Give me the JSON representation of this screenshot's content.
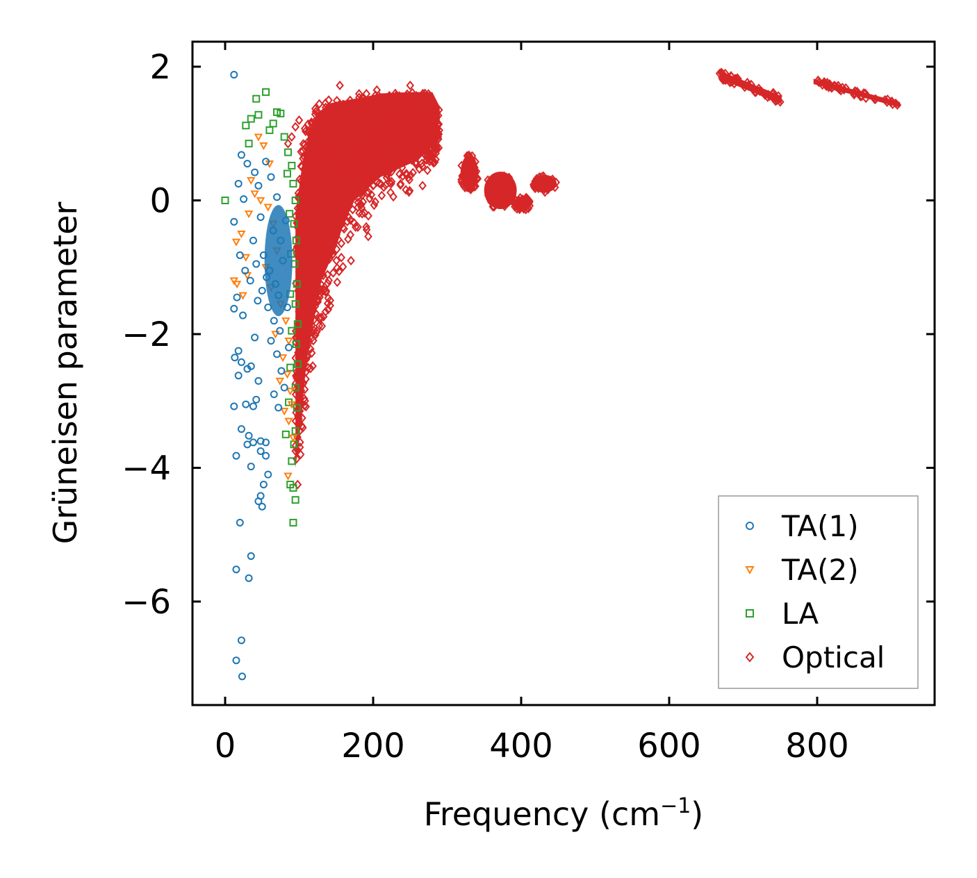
{
  "chart_data": {
    "type": "scatter",
    "title": "",
    "xlabel": "Frequency (cm",
    "xlabel_sup": "−1",
    "xlabel_close": ")",
    "ylabel": "Grüneisen parameter",
    "xlim": [
      -22,
      960
    ],
    "ylim": [
      -7.5,
      2.4
    ],
    "xticks": [
      0,
      200,
      400,
      600,
      800
    ],
    "xtick_labels": [
      "0",
      "200",
      "400",
      "600",
      "800"
    ],
    "yticks": [
      2,
      0,
      -2,
      -4,
      -6
    ],
    "ytick_labels": [
      "2",
      "0",
      "−2",
      "−4",
      "−6"
    ],
    "grid": false,
    "legend_position": "bottom-right",
    "series": [
      {
        "name": "TA(1)",
        "marker": "circle",
        "color": "#1f77b4",
        "points": [
          [
            12,
            1.88
          ],
          [
            22,
            0.68
          ],
          [
            30,
            0.55
          ],
          [
            18,
            0.25
          ],
          [
            25,
            0.02
          ],
          [
            12,
            -0.32
          ],
          [
            20,
            -0.82
          ],
          [
            27,
            -1.05
          ],
          [
            16,
            -1.45
          ],
          [
            24,
            -1.72
          ],
          [
            12,
            -1.62
          ],
          [
            18,
            -2.25
          ],
          [
            13,
            -2.35
          ],
          [
            22,
            -2.42
          ],
          [
            18,
            -2.62
          ],
          [
            30,
            -2.52
          ],
          [
            35,
            -2.48
          ],
          [
            40,
            -2.05
          ],
          [
            45,
            -2.7
          ],
          [
            12,
            -3.08
          ],
          [
            28,
            -3.05
          ],
          [
            38,
            -3.08
          ],
          [
            42,
            -2.98
          ],
          [
            22,
            -3.42
          ],
          [
            32,
            -3.52
          ],
          [
            38,
            -3.62
          ],
          [
            30,
            -3.65
          ],
          [
            48,
            -3.6
          ],
          [
            55,
            -3.62
          ],
          [
            35,
            -3.98
          ],
          [
            48,
            -3.75
          ],
          [
            55,
            -3.82
          ],
          [
            58,
            -4.1
          ],
          [
            52,
            -4.25
          ],
          [
            48,
            -4.42
          ],
          [
            50,
            -4.58
          ],
          [
            45,
            -4.5
          ],
          [
            15,
            -3.82
          ],
          [
            20,
            -4.82
          ],
          [
            35,
            -5.32
          ],
          [
            15,
            -5.52
          ],
          [
            32,
            -5.65
          ],
          [
            22,
            -6.58
          ],
          [
            15,
            -6.88
          ],
          [
            23,
            -7.12
          ],
          [
            40,
            0.42
          ],
          [
            45,
            0.22
          ],
          [
            55,
            0.58
          ],
          [
            62,
            0.35
          ],
          [
            70,
            0.05
          ],
          [
            48,
            -0.25
          ],
          [
            65,
            -0.45
          ],
          [
            75,
            -0.6
          ],
          [
            52,
            -0.82
          ],
          [
            60,
            -1.05
          ],
          [
            68,
            -1.25
          ],
          [
            72,
            -1.42
          ],
          [
            58,
            -1.6
          ],
          [
            66,
            -1.8
          ],
          [
            74,
            -1.95
          ],
          [
            50,
            -1.35
          ],
          [
            56,
            -1.15
          ],
          [
            62,
            -2.1
          ],
          [
            70,
            -2.3
          ],
          [
            76,
            -2.55
          ],
          [
            80,
            -2.8
          ],
          [
            66,
            -2.9
          ],
          [
            72,
            -3.1
          ],
          [
            82,
            -0.3
          ],
          [
            78,
            -0.9
          ],
          [
            84,
            -1.6
          ],
          [
            86,
            -2.2
          ],
          [
            44,
            -1.5
          ],
          [
            38,
            -0.6
          ],
          [
            34,
            -1.2
          ],
          [
            42,
            -0.95
          ]
        ]
      },
      {
        "name": "TA(2)",
        "marker": "triangle-down",
        "color": "#ff7f0e",
        "points": [
          [
            15,
            -0.62
          ],
          [
            12,
            -1.2
          ],
          [
            16,
            -1.25
          ],
          [
            30,
            -1.12
          ],
          [
            24,
            -1.42
          ],
          [
            22,
            -0.5
          ],
          [
            45,
            0.95
          ],
          [
            52,
            0.82
          ],
          [
            60,
            0.55
          ],
          [
            35,
            0.3
          ],
          [
            40,
            0.1
          ],
          [
            58,
            -0.1
          ],
          [
            65,
            -0.35
          ],
          [
            70,
            -0.75
          ],
          [
            55,
            -1.0
          ],
          [
            62,
            -1.3
          ],
          [
            75,
            -1.55
          ],
          [
            82,
            -1.8
          ],
          [
            86,
            -2.1
          ],
          [
            78,
            -2.35
          ],
          [
            84,
            -2.6
          ],
          [
            88,
            -2.85
          ],
          [
            90,
            -3.05
          ],
          [
            86,
            -3.3
          ],
          [
            92,
            -3.55
          ],
          [
            85,
            -4.12
          ],
          [
            48,
            0.0
          ],
          [
            32,
            -0.2
          ],
          [
            28,
            -0.85
          ],
          [
            68,
            -2.0
          ],
          [
            74,
            -2.7
          ],
          [
            80,
            -3.15
          ]
        ]
      },
      {
        "name": "LA",
        "marker": "square",
        "color": "#2ca02c",
        "points": [
          [
            0,
            0.0
          ],
          [
            42,
            1.52
          ],
          [
            55,
            1.62
          ],
          [
            28,
            1.12
          ],
          [
            35,
            1.22
          ],
          [
            45,
            1.28
          ],
          [
            70,
            1.32
          ],
          [
            75,
            1.3
          ],
          [
            32,
            0.85
          ],
          [
            60,
            1.05
          ],
          [
            65,
            1.15
          ],
          [
            80,
            0.95
          ],
          [
            85,
            0.72
          ],
          [
            90,
            0.52
          ],
          [
            92,
            0.25
          ],
          [
            95,
            0.0
          ],
          [
            93,
            -0.35
          ],
          [
            96,
            -0.6
          ],
          [
            94,
            -0.95
          ],
          [
            97,
            -1.25
          ],
          [
            95,
            -1.55
          ],
          [
            98,
            -1.85
          ],
          [
            96,
            -2.15
          ],
          [
            98,
            -2.45
          ],
          [
            95,
            -2.8
          ],
          [
            97,
            -3.1
          ],
          [
            95,
            -3.45
          ],
          [
            93,
            -3.65
          ],
          [
            90,
            -3.9
          ],
          [
            92,
            -4.3
          ],
          [
            95,
            -4.48
          ],
          [
            92,
            -4.82
          ],
          [
            88,
            -4.25
          ],
          [
            82,
            -3.5
          ],
          [
            86,
            -3.02
          ],
          [
            88,
            -2.5
          ],
          [
            90,
            -1.95
          ],
          [
            88,
            -1.4
          ],
          [
            89,
            -0.8
          ],
          [
            87,
            -0.2
          ],
          [
            84,
            0.4
          ]
        ]
      },
      {
        "name": "Optical",
        "marker": "diamond",
        "color": "#d62728",
        "points": [
          [
            100,
            1.2
          ],
          [
            95,
            1.1
          ],
          [
            90,
            0.95
          ],
          [
            85,
            0.85
          ],
          [
            140,
            1.5
          ],
          [
            155,
            1.72
          ],
          [
            205,
            1.65
          ],
          [
            250,
            1.72
          ],
          [
            270,
            1.6
          ],
          [
            245,
            0.38
          ],
          [
            225,
            0.28
          ],
          [
            200,
            0.22
          ],
          [
            185,
            0.12
          ],
          [
            160,
            -0.12
          ],
          [
            150,
            -0.35
          ],
          [
            140,
            -0.7
          ],
          [
            130,
            -1.1
          ],
          [
            125,
            -1.5
          ],
          [
            120,
            -1.95
          ],
          [
            112,
            -2.5
          ],
          [
            108,
            -3.0
          ],
          [
            105,
            -3.4
          ],
          [
            102,
            -3.8
          ],
          [
            98,
            -4.25
          ],
          [
            100,
            -3.05
          ],
          [
            110,
            -2.2
          ],
          [
            128,
            -1.78
          ]
        ],
        "bands": [
          {
            "x_lo": [
              95,
              100,
              105,
              110,
              120,
              130,
              150,
              160,
              175,
              210,
              260,
              280
            ],
            "x_hi": [
              95,
              105,
              115,
              125,
              140,
              165,
              190,
              210,
              250,
              280,
              290,
              290
            ],
            "y_lo": [
              -4.0,
              -3.6,
              -3.0,
              -2.4,
              -1.8,
              -1.2,
              -0.7,
              -0.35,
              0.0,
              0.35,
              0.6,
              0.8
            ],
            "y_hi": [
              -0.2,
              0.6,
              1.1,
              1.3,
              1.45,
              1.5,
              1.55,
              1.6,
              1.62,
              1.62,
              1.4,
              1.2
            ]
          }
        ],
        "clusters": [
          {
            "xc": 330,
            "yc": 0.4,
            "rx": 12,
            "ry": 0.28
          },
          {
            "xc": 372,
            "yc": 0.15,
            "rx": 22,
            "ry": 0.28
          },
          {
            "xc": 402,
            "yc": -0.05,
            "rx": 12,
            "ry": 0.1
          },
          {
            "xc": 432,
            "yc": 0.25,
            "rx": 16,
            "ry": 0.13
          }
        ],
        "streaks": [
          {
            "x0": 668,
            "y0": 1.88,
            "x1": 752,
            "y1": 1.5,
            "w": 0.12
          },
          {
            "x0": 795,
            "y0": 1.78,
            "x1": 912,
            "y1": 1.43,
            "w": 0.08
          }
        ]
      }
    ]
  }
}
